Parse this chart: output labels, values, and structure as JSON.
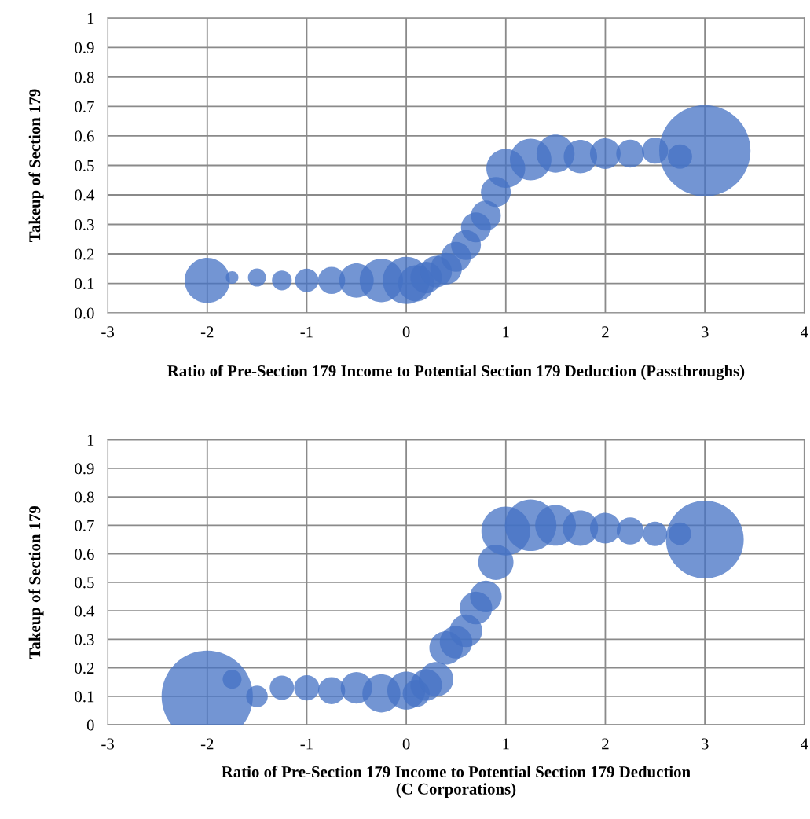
{
  "chart_data": [
    {
      "type": "bubble",
      "xlabel": "Ratio of Pre-Section 179 Income to Potential Section 179 Deduction (Passthroughs)",
      "ylabel": "Takeup of Section 179",
      "x": [
        -2,
        -1.75,
        -1.5,
        -1.25,
        -1,
        -0.75,
        -0.5,
        -0.25,
        0,
        0.1,
        0.2,
        0.3,
        0.4,
        0.5,
        0.6,
        0.7,
        0.8,
        0.9,
        1,
        1.25,
        1.5,
        1.75,
        2,
        2.25,
        2.5,
        2.75,
        3
      ],
      "values": [
        0.11,
        0.12,
        0.12,
        0.11,
        0.11,
        0.11,
        0.11,
        0.11,
        0.11,
        0.1,
        0.12,
        0.14,
        0.15,
        0.19,
        0.23,
        0.29,
        0.33,
        0.41,
        0.49,
        0.52,
        0.54,
        0.53,
        0.54,
        0.54,
        0.55,
        0.53,
        0.55
      ],
      "sizes": [
        0.245,
        0.019,
        0.039,
        0.047,
        0.066,
        0.088,
        0.142,
        0.226,
        0.265,
        0.157,
        0.12,
        0.12,
        0.12,
        0.107,
        0.107,
        0.107,
        0.107,
        0.107,
        0.181,
        0.207,
        0.173,
        0.134,
        0.113,
        0.094,
        0.082,
        0.071,
        1
      ],
      "color": "#4472c4",
      "xlim": [
        -3,
        4
      ],
      "xticks": [
        -3,
        -2,
        -1,
        0,
        1,
        2,
        3,
        4
      ],
      "ylim": [
        0,
        1
      ],
      "yticks": [
        {
          "value": 0,
          "label": "0.0"
        },
        0.1,
        0.2,
        0.3,
        0.4,
        0.5,
        0.6,
        0.7,
        0.8,
        0.9,
        1
      ],
      "grid": true
    },
    {
      "type": "bubble",
      "xlabel": "Ratio of Pre-Section 179 Income to Potential Section 179 Deduction\n(C Corporations)",
      "ylabel": "Takeup of Section 179",
      "x": [
        -2,
        -1.75,
        -1.5,
        -1.25,
        -1,
        -0.75,
        -0.5,
        -0.25,
        0,
        0.1,
        0.2,
        0.3,
        0.4,
        0.5,
        0.6,
        0.7,
        0.8,
        0.9,
        1,
        1.25,
        1.5,
        1.75,
        2,
        2.25,
        2.5,
        2.75,
        3
      ],
      "values": [
        0.1,
        0.16,
        0.1,
        0.13,
        0.13,
        0.12,
        0.13,
        0.11,
        0.12,
        0.11,
        0.14,
        0.16,
        0.27,
        0.29,
        0.33,
        0.41,
        0.45,
        0.57,
        0.68,
        0.7,
        0.7,
        0.69,
        0.69,
        0.68,
        0.67,
        0.67,
        0.65
      ],
      "sizes": [
        1,
        0.043,
        0.056,
        0.071,
        0.077,
        0.088,
        0.12,
        0.173,
        0.173,
        0.088,
        0.12,
        0.142,
        0.134,
        0.127,
        0.127,
        0.127,
        0.12,
        0.149,
        0.286,
        0.318,
        0.199,
        0.149,
        0.113,
        0.088,
        0.071,
        0.061,
        0.725
      ],
      "color": "#4472c4",
      "xlim": [
        -3,
        4
      ],
      "xticks": [
        -3,
        -2,
        -1,
        0,
        1,
        2,
        3,
        4
      ],
      "ylim": [
        0,
        1
      ],
      "yticks": [
        0,
        0.1,
        0.2,
        0.3,
        0.4,
        0.5,
        0.6,
        0.7,
        0.8,
        0.9,
        1
      ],
      "grid": true
    }
  ]
}
